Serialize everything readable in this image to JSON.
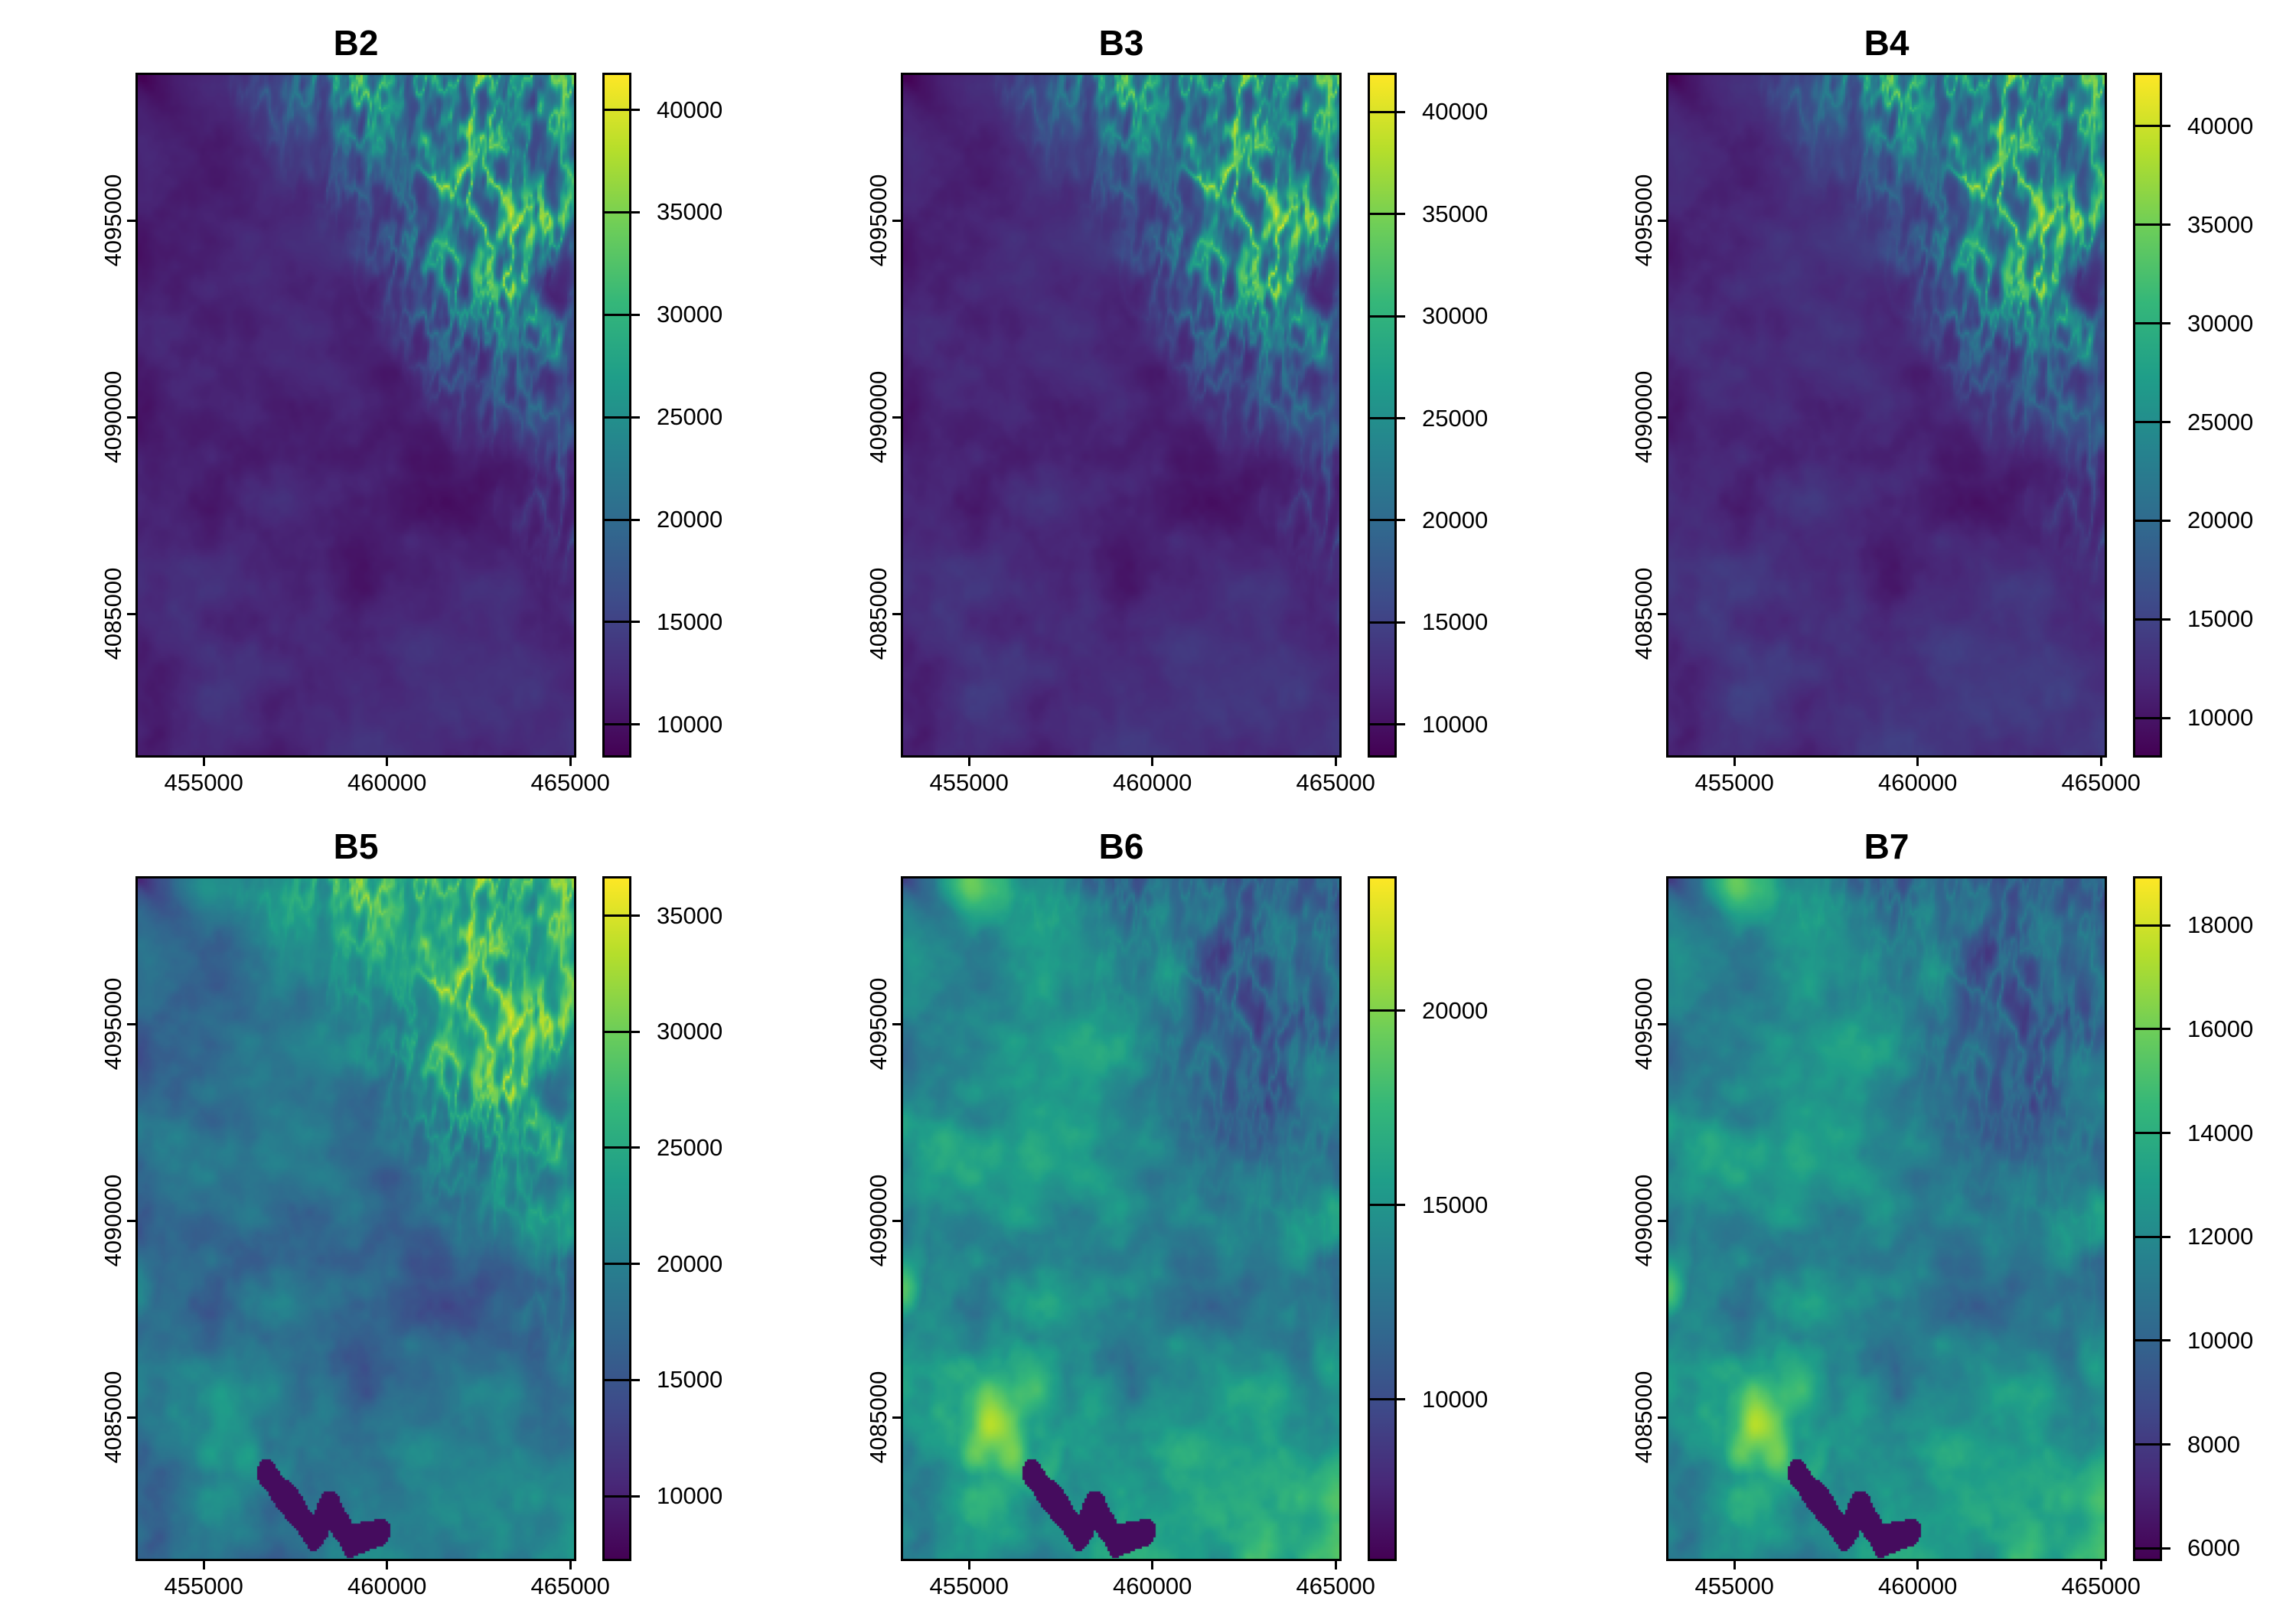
{
  "figure": {
    "background": "#ffffff",
    "axis_color": "#000000",
    "text_color": "#000000",
    "colormap_name": "viridis",
    "colormap_stops": [
      "#440154",
      "#482878",
      "#3e4a89",
      "#31688e",
      "#26828e",
      "#1f9e89",
      "#35b779",
      "#6ece58",
      "#b5de2b",
      "#fde725"
    ]
  },
  "chart_data": [
    {
      "type": "heatmap",
      "title": "B2",
      "x_ticks": [
        455000,
        460000,
        465000
      ],
      "y_ticks": [
        4095000,
        4090000,
        4085000
      ],
      "x_range": [
        453200,
        465100
      ],
      "y_range": [
        4081400,
        4098700
      ],
      "grid": false,
      "legend_position": "right",
      "colorbar": {
        "ticks": [
          40000,
          35000,
          30000,
          25000,
          20000,
          15000,
          10000
        ],
        "vmin": 8500,
        "vmax": 41700,
        "colormap": "viridis"
      },
      "appearance": {
        "base": 0.09,
        "gain": 0.11,
        "corner": "bright",
        "lake": false,
        "patches": 0
      }
    },
    {
      "type": "heatmap",
      "title": "B3",
      "x_ticks": [
        455000,
        460000,
        465000
      ],
      "y_ticks": [
        4095000,
        4090000,
        4085000
      ],
      "x_range": [
        453200,
        465100
      ],
      "y_range": [
        4081400,
        4098700
      ],
      "grid": false,
      "legend_position": "right",
      "colorbar": {
        "ticks": [
          40000,
          35000,
          30000,
          25000,
          20000,
          15000,
          10000
        ],
        "vmin": 8500,
        "vmax": 41800,
        "colormap": "viridis"
      },
      "appearance": {
        "base": 0.1,
        "gain": 0.12,
        "corner": "bright",
        "lake": false,
        "patches": 0
      }
    },
    {
      "type": "heatmap",
      "title": "B4",
      "x_ticks": [
        455000,
        460000,
        465000
      ],
      "y_ticks": [
        4095000,
        4090000,
        4085000
      ],
      "x_range": [
        453200,
        465100
      ],
      "y_range": [
        4081400,
        4098700
      ],
      "grid": false,
      "legend_position": "right",
      "colorbar": {
        "ticks": [
          40000,
          35000,
          30000,
          25000,
          20000,
          15000,
          10000
        ],
        "vmin": 8100,
        "vmax": 42600,
        "colormap": "viridis"
      },
      "appearance": {
        "base": 0.11,
        "gain": 0.13,
        "corner": "bright",
        "lake": false,
        "patches": 0
      }
    },
    {
      "type": "heatmap",
      "title": "B5",
      "x_ticks": [
        455000,
        460000,
        465000
      ],
      "y_ticks": [
        4095000,
        4090000,
        4085000
      ],
      "x_range": [
        453200,
        465100
      ],
      "y_range": [
        4081400,
        4098700
      ],
      "grid": false,
      "legend_position": "right",
      "colorbar": {
        "ticks": [
          35000,
          30000,
          25000,
          20000,
          15000,
          10000
        ],
        "vmin": 7300,
        "vmax": 36600,
        "colormap": "viridis"
      },
      "appearance": {
        "base": 0.34,
        "gain": 0.26,
        "corner": "bright",
        "lake": true,
        "patches": 0.35
      }
    },
    {
      "type": "heatmap",
      "title": "B6",
      "x_ticks": [
        455000,
        460000,
        465000
      ],
      "y_ticks": [
        4095000,
        4090000,
        4085000
      ],
      "x_range": [
        453200,
        465100
      ],
      "y_range": [
        4081400,
        4098700
      ],
      "grid": false,
      "legend_position": "right",
      "colorbar": {
        "ticks": [
          20000,
          15000,
          10000
        ],
        "vmin": 5900,
        "vmax": 23400,
        "colormap": "viridis"
      },
      "appearance": {
        "base": 0.46,
        "gain": 0.3,
        "corner": "dark",
        "lake": true,
        "patches": 1
      }
    },
    {
      "type": "heatmap",
      "title": "B7",
      "x_ticks": [
        455000,
        460000,
        465000
      ],
      "y_ticks": [
        4095000,
        4090000,
        4085000
      ],
      "x_range": [
        453200,
        465100
      ],
      "y_range": [
        4081400,
        4098700
      ],
      "grid": false,
      "legend_position": "right",
      "colorbar": {
        "ticks": [
          18000,
          16000,
          14000,
          12000,
          10000,
          8000,
          6000
        ],
        "vmin": 5800,
        "vmax": 18900,
        "colormap": "viridis"
      },
      "appearance": {
        "base": 0.44,
        "gain": 0.3,
        "corner": "dark",
        "lake": true,
        "patches": 1
      }
    }
  ]
}
